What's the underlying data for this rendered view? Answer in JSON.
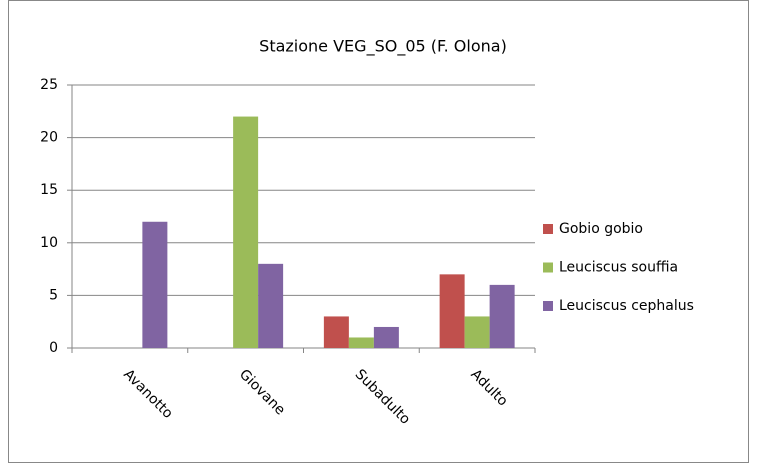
{
  "chart_data": {
    "type": "bar",
    "title": "Stazione VEG_SO_05 (F. Olona)",
    "categories": [
      "Avanotto",
      "Giovane",
      "Subadulto",
      "Adulto"
    ],
    "series": [
      {
        "name": "Gobio gobio",
        "color": "#c0504d",
        "values": [
          0,
          0,
          3,
          7
        ]
      },
      {
        "name": "Leuciscus souffia",
        "color": "#9bbb59",
        "values": [
          0,
          22,
          1,
          3
        ]
      },
      {
        "name": "Leuciscus cephalus",
        "color": "#8064a2",
        "values": [
          12,
          8,
          2,
          6
        ]
      }
    ],
    "ylim": [
      0,
      25
    ],
    "yticks": [
      0,
      5,
      10,
      15,
      20,
      25
    ],
    "grid": true,
    "legend": "right"
  }
}
